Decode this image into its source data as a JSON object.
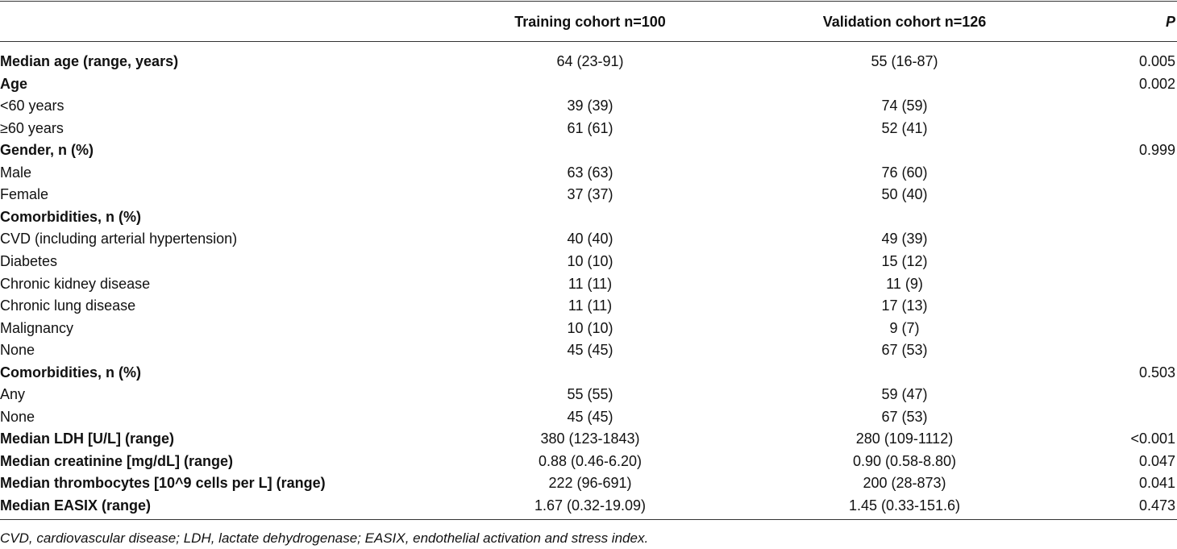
{
  "table": {
    "header": {
      "training": "Training cohort n=100",
      "validation": "Validation cohort n=126",
      "p": "P"
    },
    "rows": [
      {
        "label": "Median age (range, years)",
        "training": "64 (23-91)",
        "validation": "55 (16-87)",
        "p": "0.005",
        "bold": true
      },
      {
        "label": "Age",
        "p": "0.002",
        "bold": true
      },
      {
        "label": "<60 years",
        "training": "39 (39)",
        "validation": "74 (59)"
      },
      {
        "label": "≥60 years",
        "training": "61 (61)",
        "validation": "52 (41)"
      },
      {
        "label": "Gender, n (%)",
        "p": "0.999",
        "bold": true
      },
      {
        "label": "Male",
        "training": "63 (63)",
        "validation": "76 (60)"
      },
      {
        "label": "Female",
        "training": "37 (37)",
        "validation": "50 (40)"
      },
      {
        "label": "Comorbidities, n (%)",
        "bold": true
      },
      {
        "label": "CVD (including arterial hypertension)",
        "training": "40 (40)",
        "validation": "49 (39)"
      },
      {
        "label": "Diabetes",
        "training": "10 (10)",
        "validation": "15 (12)"
      },
      {
        "label": "Chronic kidney disease",
        "training": "11 (11)",
        "validation": "11 (9)"
      },
      {
        "label": "Chronic lung disease",
        "training": "11 (11)",
        "validation": "17 (13)"
      },
      {
        "label": "Malignancy",
        "training": "10 (10)",
        "validation": "9 (7)"
      },
      {
        "label": "None",
        "training": "45 (45)",
        "validation": "67 (53)"
      },
      {
        "label": "Comorbidities, n (%)",
        "p": "0.503",
        "bold": true
      },
      {
        "label": "Any",
        "training": "55 (55)",
        "validation": "59 (47)"
      },
      {
        "label": "None",
        "training": "45 (45)",
        "validation": "67 (53)"
      },
      {
        "label": "Median LDH [U/L] (range)",
        "training": "380 (123-1843)",
        "validation": "280 (109-1112)",
        "p": "<0.001",
        "bold": true
      },
      {
        "label": "Median creatinine [mg/dL] (range)",
        "training": "0.88 (0.46-6.20)",
        "validation": "0.90 (0.58-8.80)",
        "p": "0.047",
        "bold": true
      },
      {
        "label": "Median thrombocytes [10^9 cells per L] (range)",
        "training": "222 (96-691)",
        "validation": "200 (28-873)",
        "p": "0.041",
        "bold": true
      },
      {
        "label": "Median EASIX (range)",
        "training": "1.67 (0.32-19.09)",
        "validation": "1.45 (0.33-151.6)",
        "p": "0.473",
        "bold": true
      }
    ],
    "footnote": "CVD, cardiovascular disease; LDH, lactate dehydrogenase; EASIX, endothelial activation and stress index."
  }
}
